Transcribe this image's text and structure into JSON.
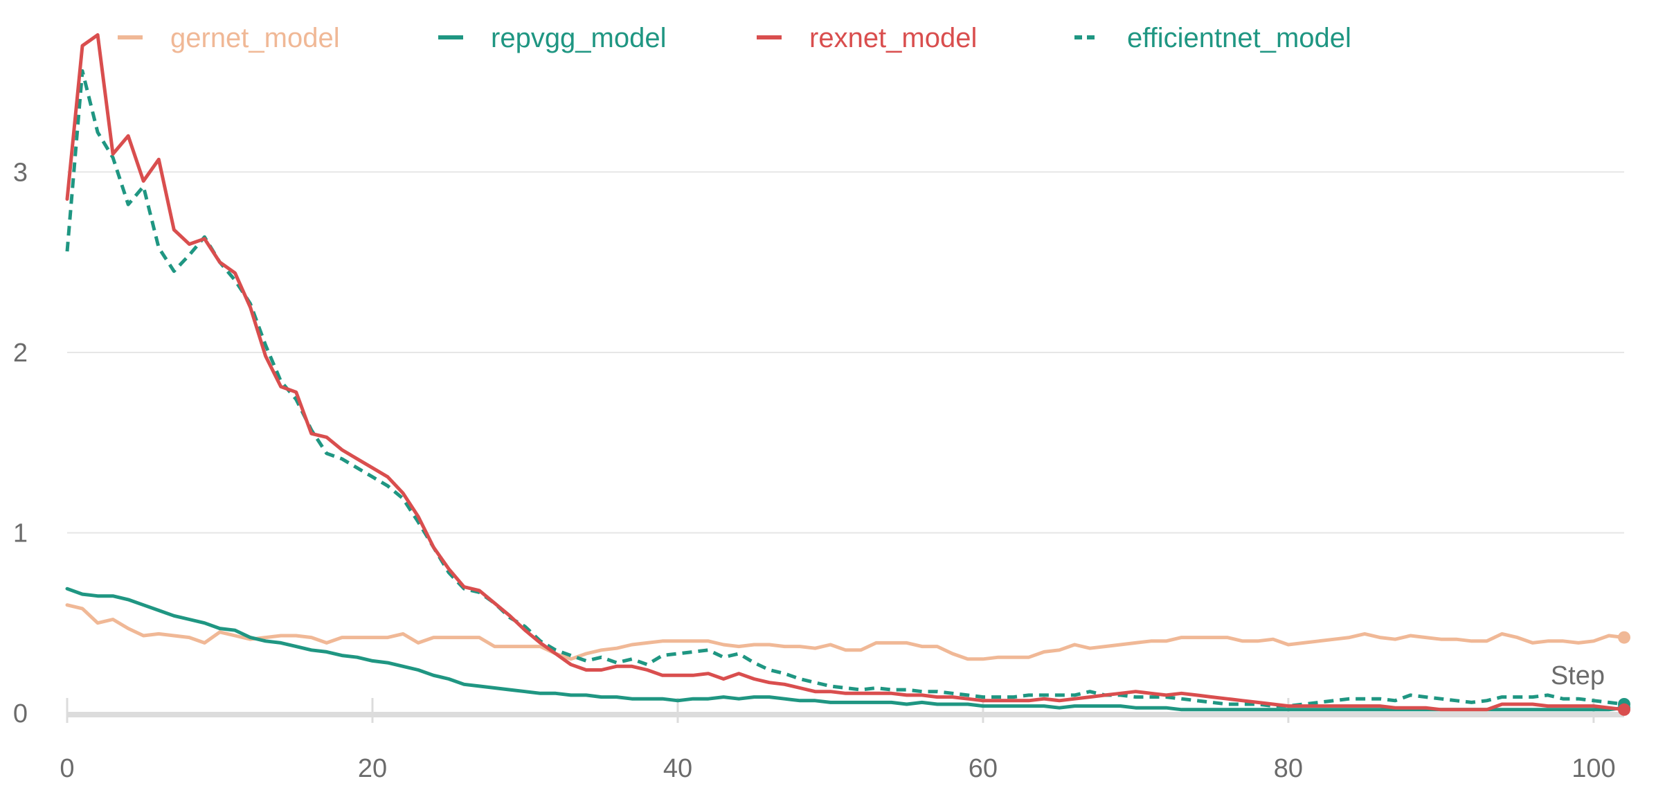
{
  "chart_data": {
    "type": "line",
    "xlabel": "Step",
    "ylabel": "",
    "xlim": [
      0,
      102
    ],
    "ylim": [
      0,
      3.8
    ],
    "x_ticks": [
      0,
      20,
      40,
      60,
      80,
      100
    ],
    "y_ticks": [
      0,
      1,
      2,
      3
    ],
    "grid": true,
    "legend_position": "top",
    "series": [
      {
        "name": "gernet_model",
        "color": "#f0b896",
        "dash": "solid",
        "values": [
          0.6,
          0.58,
          0.5,
          0.52,
          0.47,
          0.43,
          0.44,
          0.43,
          0.42,
          0.39,
          0.45,
          0.43,
          0.41,
          0.42,
          0.43,
          0.43,
          0.42,
          0.39,
          0.42,
          0.42,
          0.42,
          0.42,
          0.44,
          0.39,
          0.42,
          0.42,
          0.42,
          0.42,
          0.37,
          0.37,
          0.37,
          0.37,
          0.33,
          0.3,
          0.33,
          0.35,
          0.36,
          0.38,
          0.39,
          0.4,
          0.4,
          0.4,
          0.4,
          0.38,
          0.37,
          0.38,
          0.38,
          0.37,
          0.37,
          0.36,
          0.38,
          0.35,
          0.35,
          0.39,
          0.39,
          0.39,
          0.37,
          0.37,
          0.33,
          0.3,
          0.3,
          0.31,
          0.31,
          0.31,
          0.34,
          0.35,
          0.38,
          0.36,
          0.37,
          0.38,
          0.39,
          0.4,
          0.4,
          0.42,
          0.42,
          0.42,
          0.42,
          0.4,
          0.4,
          0.41,
          0.38,
          0.39,
          0.4,
          0.41,
          0.42,
          0.44,
          0.42,
          0.41,
          0.43,
          0.42,
          0.41,
          0.41,
          0.4,
          0.4,
          0.44,
          0.42,
          0.39,
          0.4,
          0.4,
          0.39,
          0.4,
          0.43,
          0.42
        ]
      },
      {
        "name": "repvgg_model",
        "color": "#1f9682",
        "dash": "solid",
        "values": [
          0.69,
          0.66,
          0.65,
          0.65,
          0.63,
          0.6,
          0.57,
          0.54,
          0.52,
          0.5,
          0.47,
          0.46,
          0.42,
          0.4,
          0.39,
          0.37,
          0.35,
          0.34,
          0.32,
          0.31,
          0.29,
          0.28,
          0.26,
          0.24,
          0.21,
          0.19,
          0.16,
          0.15,
          0.14,
          0.13,
          0.12,
          0.11,
          0.11,
          0.1,
          0.1,
          0.09,
          0.09,
          0.08,
          0.08,
          0.08,
          0.07,
          0.08,
          0.08,
          0.09,
          0.08,
          0.09,
          0.09,
          0.08,
          0.07,
          0.07,
          0.06,
          0.06,
          0.06,
          0.06,
          0.06,
          0.05,
          0.06,
          0.05,
          0.05,
          0.05,
          0.04,
          0.04,
          0.04,
          0.04,
          0.04,
          0.03,
          0.04,
          0.04,
          0.04,
          0.04,
          0.03,
          0.03,
          0.03,
          0.02,
          0.02,
          0.02,
          0.02,
          0.02,
          0.02,
          0.02,
          0.02,
          0.02,
          0.02,
          0.02,
          0.02,
          0.02,
          0.02,
          0.02,
          0.02,
          0.02,
          0.02,
          0.02,
          0.02,
          0.02,
          0.02,
          0.02,
          0.02,
          0.02,
          0.02,
          0.02,
          0.02,
          0.02,
          0.03
        ]
      },
      {
        "name": "rexnet_model",
        "color": "#d94e4e",
        "dash": "solid",
        "values": [
          2.85,
          3.7,
          3.76,
          3.1,
          3.2,
          2.95,
          3.07,
          2.68,
          2.6,
          2.63,
          2.5,
          2.44,
          2.25,
          1.98,
          1.81,
          1.78,
          1.55,
          1.53,
          1.46,
          1.41,
          1.36,
          1.31,
          1.22,
          1.09,
          0.92,
          0.8,
          0.7,
          0.68,
          0.61,
          0.54,
          0.46,
          0.39,
          0.33,
          0.27,
          0.24,
          0.24,
          0.26,
          0.26,
          0.24,
          0.21,
          0.21,
          0.21,
          0.22,
          0.19,
          0.22,
          0.19,
          0.17,
          0.16,
          0.14,
          0.12,
          0.12,
          0.11,
          0.11,
          0.11,
          0.11,
          0.1,
          0.1,
          0.09,
          0.09,
          0.08,
          0.07,
          0.07,
          0.07,
          0.07,
          0.08,
          0.07,
          0.08,
          0.09,
          0.1,
          0.11,
          0.12,
          0.11,
          0.1,
          0.11,
          0.1,
          0.09,
          0.08,
          0.07,
          0.06,
          0.05,
          0.04,
          0.04,
          0.04,
          0.04,
          0.04,
          0.04,
          0.04,
          0.03,
          0.03,
          0.03,
          0.02,
          0.02,
          0.02,
          0.02,
          0.05,
          0.05,
          0.05,
          0.04,
          0.04,
          0.04,
          0.04,
          0.03,
          0.02
        ]
      },
      {
        "name": "efficientnet_model",
        "color": "#1f9682",
        "dash": "dashed",
        "values": [
          2.56,
          3.56,
          3.22,
          3.08,
          2.82,
          2.92,
          2.58,
          2.45,
          2.54,
          2.64,
          2.5,
          2.4,
          2.27,
          2.04,
          1.84,
          1.74,
          1.57,
          1.44,
          1.41,
          1.36,
          1.31,
          1.26,
          1.19,
          1.06,
          0.92,
          0.78,
          0.69,
          0.67,
          0.61,
          0.53,
          0.48,
          0.4,
          0.35,
          0.32,
          0.29,
          0.31,
          0.28,
          0.3,
          0.27,
          0.32,
          0.33,
          0.34,
          0.35,
          0.31,
          0.33,
          0.28,
          0.24,
          0.22,
          0.19,
          0.17,
          0.15,
          0.14,
          0.13,
          0.14,
          0.13,
          0.13,
          0.12,
          0.12,
          0.11,
          0.1,
          0.09,
          0.09,
          0.09,
          0.1,
          0.1,
          0.1,
          0.1,
          0.12,
          0.1,
          0.1,
          0.09,
          0.09,
          0.09,
          0.08,
          0.07,
          0.06,
          0.05,
          0.05,
          0.05,
          0.04,
          0.04,
          0.05,
          0.06,
          0.07,
          0.08,
          0.08,
          0.08,
          0.07,
          0.1,
          0.09,
          0.08,
          0.07,
          0.06,
          0.07,
          0.09,
          0.09,
          0.09,
          0.1,
          0.08,
          0.08,
          0.07,
          0.06,
          0.05
        ]
      }
    ]
  }
}
